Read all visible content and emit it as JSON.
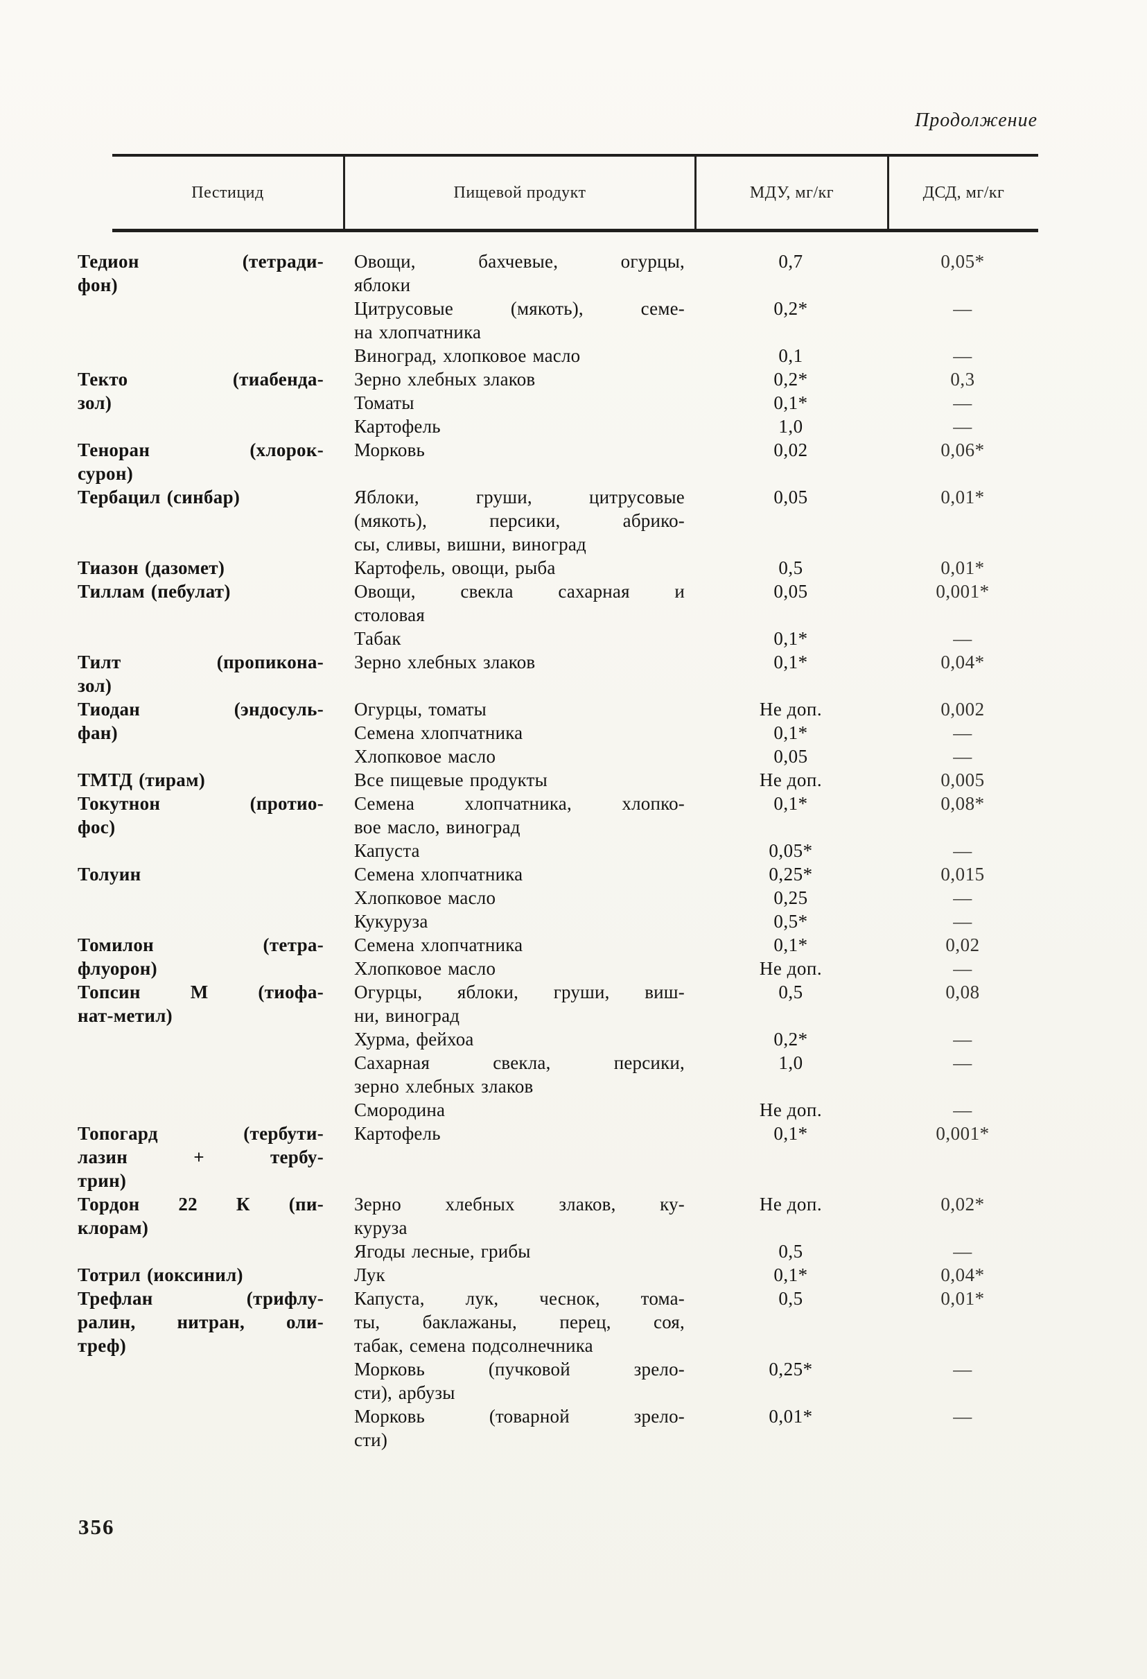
{
  "page": {
    "continuation_label": "Продолжение",
    "page_number": "356"
  },
  "table": {
    "headers": [
      "Пестицид",
      "Пищевой продукт",
      "МДУ, мг/кг",
      "ДСД, мг/кг"
    ],
    "entries": [
      {
        "pesticide": [
          "Тедион (тетради-",
          "фон)"
        ],
        "items": [
          {
            "product": [
              "Овощи, бахчевые, огурцы,",
              "яблоки"
            ],
            "mdu": "0,7",
            "dsd": "0,05*"
          },
          {
            "product": [
              "Цитрусовые (мякоть), семе-",
              "на хлопчатника"
            ],
            "mdu": "0,2*",
            "dsd": "—"
          },
          {
            "product": [
              "Виноград, хлопковое масло"
            ],
            "mdu": "0,1",
            "dsd": "—"
          }
        ]
      },
      {
        "pesticide": [
          "Текто (тиабенда-",
          "зол)"
        ],
        "items": [
          {
            "product": [
              "Зерно хлебных злаков"
            ],
            "mdu": "0,2*",
            "dsd": "0,3"
          },
          {
            "product": [
              "Томаты"
            ],
            "mdu": "0,1*",
            "dsd": "—"
          },
          {
            "product": [
              "Картофель"
            ],
            "mdu": "1,0",
            "dsd": "—"
          }
        ]
      },
      {
        "pesticide": [
          "Теноран (хлорок-",
          "сурон)"
        ],
        "items": [
          {
            "product": [
              "Морковь"
            ],
            "mdu": "0,02",
            "dsd": "0,06*"
          }
        ]
      },
      {
        "pesticide": [
          "Тербацил (синбар)"
        ],
        "items": [
          {
            "product": [
              "Яблоки, груши, цитрусовые",
              "(мякоть), персики, абрико-",
              "сы, сливы, вишни, виноград"
            ],
            "mdu": "0,05",
            "dsd": "0,01*"
          }
        ]
      },
      {
        "pesticide": [
          "Тиазон (дазомет)"
        ],
        "items": [
          {
            "product": [
              "Картофель, овощи, рыба"
            ],
            "mdu": "0,5",
            "dsd": "0,01*"
          }
        ]
      },
      {
        "pesticide": [
          "Тиллам (пебулат)"
        ],
        "items": [
          {
            "product": [
              "Овощи, свекла сахарная и",
              "столовая"
            ],
            "mdu": "0,05",
            "dsd": "0,001*"
          },
          {
            "product": [
              "Табак"
            ],
            "mdu": "0,1*",
            "dsd": "—"
          }
        ]
      },
      {
        "pesticide": [
          "Тилт (пропикона-",
          "зол)"
        ],
        "items": [
          {
            "product": [
              "Зерно хлебных злаков"
            ],
            "mdu": "0,1*",
            "dsd": "0,04*"
          }
        ]
      },
      {
        "pesticide": [
          "Тиодан (эндосуль-",
          "фан)"
        ],
        "items": [
          {
            "product": [
              "Огурцы, томаты"
            ],
            "mdu": "Не доп.",
            "dsd": "0,002"
          },
          {
            "product": [
              "Семена хлопчатника"
            ],
            "mdu": "0,1*",
            "dsd": "—"
          },
          {
            "product": [
              "Хлопковое масло"
            ],
            "mdu": "0,05",
            "dsd": "—"
          }
        ]
      },
      {
        "pesticide": [
          "ТМТД (тирам)"
        ],
        "items": [
          {
            "product": [
              "Все пищевые продукты"
            ],
            "mdu": "Не доп.",
            "dsd": "0,005"
          }
        ]
      },
      {
        "pesticide": [
          "Токутнон (протио-",
          "фос)"
        ],
        "items": [
          {
            "product": [
              "Семена хлопчатника, хлопко-",
              "вое масло, виноград"
            ],
            "mdu": "0,1*",
            "dsd": "0,08*"
          },
          {
            "product": [
              "Капуста"
            ],
            "mdu": "0,05*",
            "dsd": "—"
          }
        ]
      },
      {
        "pesticide": [
          "Толуин"
        ],
        "items": [
          {
            "product": [
              "Семена хлопчатника"
            ],
            "mdu": "0,25*",
            "dsd": "0,015"
          },
          {
            "product": [
              "Хлопковое масло"
            ],
            "mdu": "0,25",
            "dsd": "—"
          },
          {
            "product": [
              "Кукуруза"
            ],
            "mdu": "0,5*",
            "dsd": "—"
          }
        ]
      },
      {
        "pesticide": [
          "Томилон (тетра-",
          "флуорон)"
        ],
        "items": [
          {
            "product": [
              "Семена хлопчатника"
            ],
            "mdu": "0,1*",
            "dsd": "0,02"
          },
          {
            "product": [
              "Хлопковое масло"
            ],
            "mdu": "Не доп.",
            "dsd": "—"
          }
        ]
      },
      {
        "pesticide": [
          "Топсин М (тиофа-",
          "нат-метил)"
        ],
        "items": [
          {
            "product": [
              "Огурцы, яблоки, груши, виш-",
              "ни, виноград"
            ],
            "mdu": "0,5",
            "dsd": "0,08"
          },
          {
            "product": [
              "Хурма, фейхоа"
            ],
            "mdu": "0,2*",
            "dsd": "—"
          },
          {
            "product": [
              "Сахарная свекла, персики,",
              "зерно хлебных злаков"
            ],
            "mdu": "1,0",
            "dsd": "—"
          },
          {
            "product": [
              "Смородина"
            ],
            "mdu": "Не доп.",
            "dsd": "—"
          }
        ]
      },
      {
        "pesticide": [
          "Топогард (тербути-",
          "лазин + тербу-",
          "трин)"
        ],
        "items": [
          {
            "product": [
              "Картофель"
            ],
            "mdu": "0,1*",
            "dsd": "0,001*"
          }
        ]
      },
      {
        "pesticide": [
          "Тордон 22 К (пи-",
          "клорам)"
        ],
        "items": [
          {
            "product": [
              "Зерно хлебных злаков, ку-",
              "куруза"
            ],
            "mdu": "Не доп.",
            "dsd": "0,02*"
          },
          {
            "product": [
              "Ягоды лесные, грибы"
            ],
            "mdu": "0,5",
            "dsd": "—"
          }
        ]
      },
      {
        "pesticide": [
          "Тотрил (иоксинил)"
        ],
        "items": [
          {
            "product": [
              "Лук"
            ],
            "mdu": "0,1*",
            "dsd": "0,04*"
          }
        ]
      },
      {
        "pesticide": [
          "Трефлан (трифлу-",
          "ралин, нитран, оли-",
          "треф)"
        ],
        "items": [
          {
            "product": [
              "Капуста, лук, чеснок, тома-",
              "ты, баклажаны, перец, соя,",
              "табак, семена подсолнечника"
            ],
            "mdu": "0,5",
            "dsd": "0,01*"
          },
          {
            "product": [
              "Морковь (пучковой зрело-",
              "сти), арбузы"
            ],
            "mdu": "0,25*",
            "dsd": "—"
          },
          {
            "product": [
              "Морковь (товарной зрело-",
              "сти)"
            ],
            "mdu": "0,01*",
            "dsd": "—"
          }
        ]
      }
    ]
  }
}
